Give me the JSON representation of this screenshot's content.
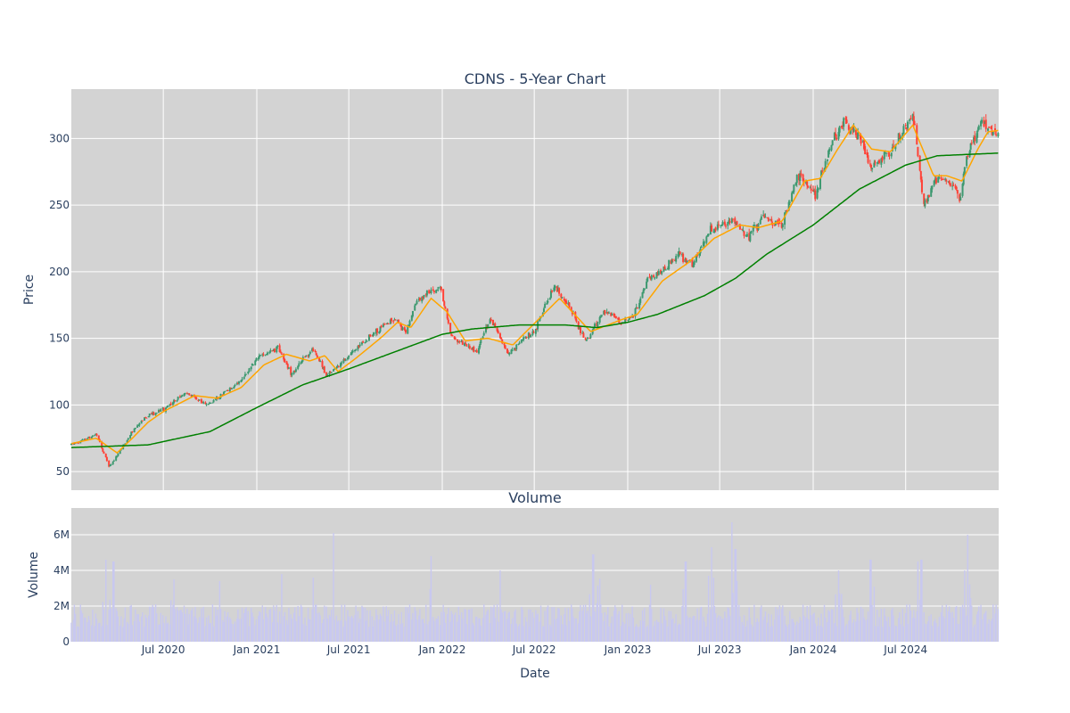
{
  "chart_data": [
    {
      "type": "candlestick",
      "title": "CDNS - 5-Year Chart",
      "ylabel": "Price",
      "ylim": [
        36,
        337
      ],
      "yticks": [
        50,
        100,
        150,
        200,
        250,
        300
      ],
      "x_range": [
        "2020-01-02",
        "2024-12-31"
      ],
      "grid": true,
      "up_color": "#3d9970",
      "down_color": "#ff4136",
      "key_points": [
        [
          "2020-01-02",
          70
        ],
        [
          "2020-02-20",
          78
        ],
        [
          "2020-03-16",
          54
        ],
        [
          "2020-04-01",
          62
        ],
        [
          "2020-05-01",
          80
        ],
        [
          "2020-06-01",
          92
        ],
        [
          "2020-07-01",
          97
        ],
        [
          "2020-08-15",
          109
        ],
        [
          "2020-09-25",
          100
        ],
        [
          "2020-11-01",
          110
        ],
        [
          "2020-12-01",
          118
        ],
        [
          "2021-01-01",
          135
        ],
        [
          "2021-02-12",
          143
        ],
        [
          "2021-03-10",
          123
        ],
        [
          "2021-04-20",
          142
        ],
        [
          "2021-05-20",
          122
        ],
        [
          "2021-07-01",
          137
        ],
        [
          "2021-08-15",
          152
        ],
        [
          "2021-09-25",
          165
        ],
        [
          "2021-10-20",
          155
        ],
        [
          "2021-11-15",
          180
        ],
        [
          "2021-12-28",
          188
        ],
        [
          "2022-01-20",
          150
        ],
        [
          "2022-03-10",
          140
        ],
        [
          "2022-04-05",
          165
        ],
        [
          "2022-05-10",
          138
        ],
        [
          "2022-06-10",
          150
        ],
        [
          "2022-07-01",
          155
        ],
        [
          "2022-08-10",
          190
        ],
        [
          "2022-09-10",
          172
        ],
        [
          "2022-10-10",
          148
        ],
        [
          "2022-11-15",
          170
        ],
        [
          "2022-12-20",
          162
        ],
        [
          "2023-01-10",
          165
        ],
        [
          "2023-02-10",
          195
        ],
        [
          "2023-03-10",
          200
        ],
        [
          "2023-04-10",
          213
        ],
        [
          "2023-05-10",
          205
        ],
        [
          "2023-06-10",
          230
        ],
        [
          "2023-07-25",
          240
        ],
        [
          "2023-08-25",
          225
        ],
        [
          "2023-09-25",
          240
        ],
        [
          "2023-10-30",
          235
        ],
        [
          "2023-12-01",
          272
        ],
        [
          "2024-01-05",
          258
        ],
        [
          "2024-02-01",
          290
        ],
        [
          "2024-03-01",
          315
        ],
        [
          "2024-04-05",
          300
        ],
        [
          "2024-04-20",
          280
        ],
        [
          "2024-06-01",
          290
        ],
        [
          "2024-07-15",
          318
        ],
        [
          "2024-07-25",
          290
        ],
        [
          "2024-08-05",
          250
        ],
        [
          "2024-09-01",
          270
        ],
        [
          "2024-10-01",
          265
        ],
        [
          "2024-10-15",
          255
        ],
        [
          "2024-11-01",
          290
        ],
        [
          "2024-11-25",
          312
        ],
        [
          "2024-12-31",
          305
        ]
      ],
      "moving_averages": [
        {
          "color": "#ffa500",
          "key_points": [
            [
              "2020-01-02",
              71
            ],
            [
              "2020-02-20",
              75
            ],
            [
              "2020-04-01",
              64
            ],
            [
              "2020-05-01",
              75
            ],
            [
              "2020-06-01",
              87
            ],
            [
              "2020-07-01",
              95
            ],
            [
              "2020-09-01",
              107
            ],
            [
              "2020-10-15",
              105
            ],
            [
              "2020-12-01",
              113
            ],
            [
              "2021-01-15",
              130
            ],
            [
              "2021-02-28",
              138
            ],
            [
              "2021-04-15",
              133
            ],
            [
              "2021-05-15",
              137
            ],
            [
              "2021-06-10",
              125
            ],
            [
              "2021-07-15",
              135
            ],
            [
              "2021-09-01",
              150
            ],
            [
              "2021-10-05",
              162
            ],
            [
              "2021-10-31",
              158
            ],
            [
              "2021-12-10",
              180
            ],
            [
              "2022-01-10",
              170
            ],
            [
              "2022-02-15",
              148
            ],
            [
              "2022-04-01",
              150
            ],
            [
              "2022-05-20",
              145
            ],
            [
              "2022-06-15",
              155
            ],
            [
              "2022-08-20",
              180
            ],
            [
              "2022-10-20",
              155
            ],
            [
              "2022-12-20",
              164
            ],
            [
              "2023-01-20",
              168
            ],
            [
              "2023-03-10",
              193
            ],
            [
              "2023-05-01",
              207
            ],
            [
              "2023-06-20",
              225
            ],
            [
              "2023-08-10",
              235
            ],
            [
              "2023-09-15",
              233
            ],
            [
              "2023-11-01",
              238
            ],
            [
              "2023-12-15",
              268
            ],
            [
              "2024-01-15",
              270
            ],
            [
              "2024-02-15",
              290
            ],
            [
              "2024-03-20",
              310
            ],
            [
              "2024-04-25",
              292
            ],
            [
              "2024-06-01",
              290
            ],
            [
              "2024-07-15",
              310
            ],
            [
              "2024-08-25",
              272
            ],
            [
              "2024-09-20",
              272
            ],
            [
              "2024-10-20",
              268
            ],
            [
              "2024-11-20",
              292
            ],
            [
              "2024-12-10",
              305
            ],
            [
              "2024-12-31",
              306
            ]
          ]
        },
        {
          "color": "#008000",
          "key_points": [
            [
              "2020-01-02",
              68
            ],
            [
              "2020-06-01",
              70
            ],
            [
              "2020-10-01",
              80
            ],
            [
              "2021-01-01",
              98
            ],
            [
              "2021-04-01",
              115
            ],
            [
              "2021-07-01",
              127
            ],
            [
              "2021-10-01",
              140
            ],
            [
              "2022-01-01",
              153
            ],
            [
              "2022-03-01",
              157
            ],
            [
              "2022-06-01",
              160
            ],
            [
              "2022-09-01",
              160
            ],
            [
              "2022-11-01",
              158
            ],
            [
              "2023-01-01",
              162
            ],
            [
              "2023-03-01",
              168
            ],
            [
              "2023-06-01",
              182
            ],
            [
              "2023-08-01",
              195
            ],
            [
              "2023-10-01",
              213
            ],
            [
              "2024-01-01",
              235
            ],
            [
              "2024-04-01",
              262
            ],
            [
              "2024-07-01",
              280
            ],
            [
              "2024-09-01",
              287
            ],
            [
              "2024-12-31",
              289
            ]
          ]
        }
      ]
    },
    {
      "type": "bar",
      "title": "Volume",
      "xlabel": "Date",
      "ylabel": "Volume",
      "ylim": [
        0,
        7500000
      ],
      "yticks": [
        {
          "value": 0,
          "label": "0"
        },
        {
          "value": 2000000,
          "label": "2M"
        },
        {
          "value": 4000000,
          "label": "4M"
        },
        {
          "value": 6000000,
          "label": "6M"
        }
      ],
      "xticks": [
        {
          "date": "2020-07-01",
          "label": "Jul 2020"
        },
        {
          "date": "2021-01-01",
          "label": "Jan 2021"
        },
        {
          "date": "2021-07-01",
          "label": "Jul 2021"
        },
        {
          "date": "2022-01-01",
          "label": "Jan 2022"
        },
        {
          "date": "2022-07-01",
          "label": "Jul 2022"
        },
        {
          "date": "2023-01-01",
          "label": "Jan 2023"
        },
        {
          "date": "2023-07-01",
          "label": "Jul 2023"
        },
        {
          "date": "2024-01-01",
          "label": "Jan 2024"
        },
        {
          "date": "2024-07-01",
          "label": "Jul 2024"
        }
      ],
      "bar_color": "#c8c8f0",
      "typical_volume": 1500000,
      "spikes": [
        [
          "2020-03-10",
          4600000
        ],
        [
          "2020-03-25",
          4500000
        ],
        [
          "2020-04-05",
          4100000
        ],
        [
          "2020-07-22",
          3500000
        ],
        [
          "2020-10-20",
          3400000
        ],
        [
          "2021-02-20",
          3800000
        ],
        [
          "2021-04-22",
          3600000
        ],
        [
          "2021-06-01",
          6100000
        ],
        [
          "2021-12-10",
          4800000
        ],
        [
          "2022-04-25",
          4000000
        ],
        [
          "2022-10-25",
          4900000
        ],
        [
          "2022-11-05",
          5100000
        ],
        [
          "2023-02-15",
          3200000
        ],
        [
          "2023-04-25",
          4500000
        ],
        [
          "2023-06-15",
          5300000
        ],
        [
          "2023-07-25",
          6700000
        ],
        [
          "2023-08-01",
          5200000
        ],
        [
          "2024-02-20",
          4000000
        ],
        [
          "2024-04-23",
          4600000
        ],
        [
          "2024-07-25",
          4500000
        ],
        [
          "2024-08-01",
          4600000
        ],
        [
          "2024-10-25",
          4000000
        ],
        [
          "2024-11-01",
          6000000
        ]
      ]
    }
  ]
}
